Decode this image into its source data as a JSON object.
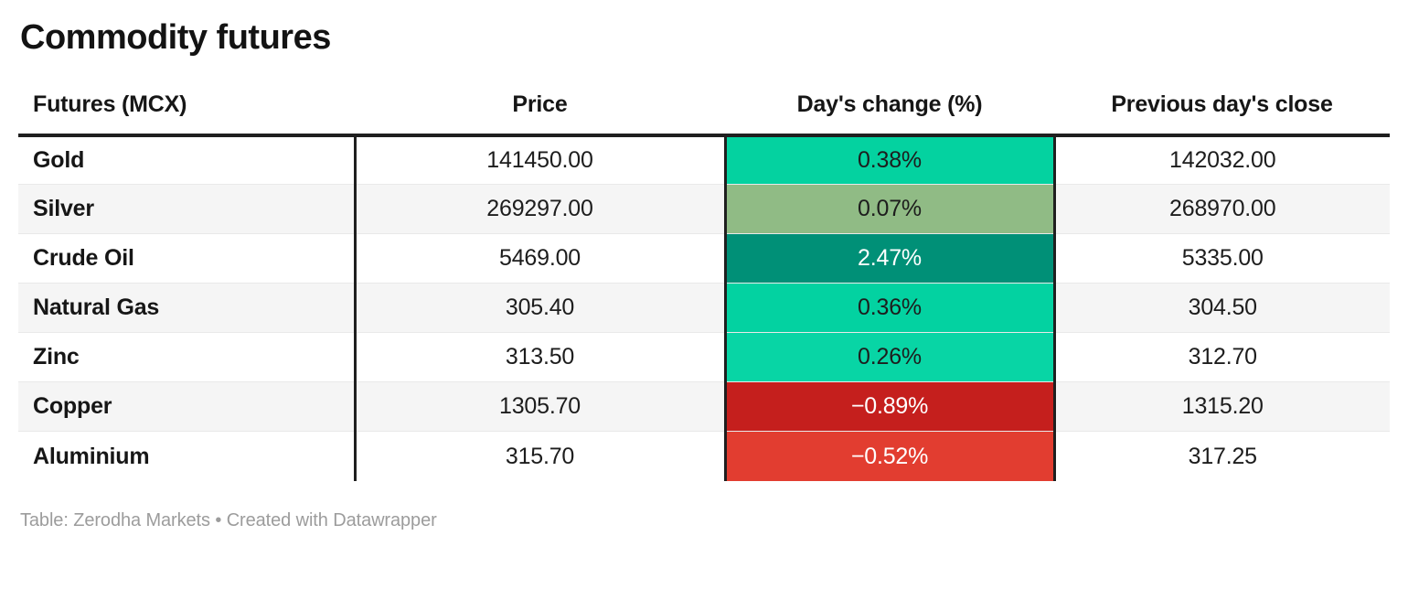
{
  "title": "Commodity futures",
  "table": {
    "columns": [
      "Futures (MCX)",
      "Price",
      "Day's change (%)",
      "Previous day's close"
    ],
    "rows": [
      {
        "name": "Gold",
        "price": "141450.00",
        "change": "0.38%",
        "prev": "142032.00",
        "change_bg": "#04d2a0",
        "change_fg": "#1d1d1d"
      },
      {
        "name": "Silver",
        "price": "269297.00",
        "change": "0.07%",
        "prev": "268970.00",
        "change_bg": "#90bb85",
        "change_fg": "#1d1d1d"
      },
      {
        "name": "Crude Oil",
        "price": "5469.00",
        "change": "2.47%",
        "prev": "5335.00",
        "change_bg": "#009077",
        "change_fg": "#ffffff"
      },
      {
        "name": "Natural Gas",
        "price": "305.40",
        "change": "0.36%",
        "prev": "304.50",
        "change_bg": "#03d2a1",
        "change_fg": "#1d1d1d"
      },
      {
        "name": "Zinc",
        "price": "313.50",
        "change": "0.26%",
        "prev": "312.70",
        "change_bg": "#08d5a5",
        "change_fg": "#1d1d1d"
      },
      {
        "name": "Copper",
        "price": "1305.70",
        "change": "−0.89%",
        "prev": "1315.20",
        "change_bg": "#c51f1d",
        "change_fg": "#ffffff"
      },
      {
        "name": "Aluminium",
        "price": "315.70",
        "change": "−0.52%",
        "prev": "317.25",
        "change_bg": "#e23d30",
        "change_fg": "#ffffff"
      }
    ]
  },
  "footer": "Table: Zerodha Markets • Created with Datawrapper",
  "colors": {
    "positive_strong": "#009077",
    "positive": "#04d2a0",
    "positive_weak": "#90bb85",
    "negative_strong": "#c51f1d",
    "negative": "#e23d30",
    "header_rule": "#1f1f1f",
    "row_stripe": "#f5f5f5",
    "footer_text": "#9c9c9c"
  },
  "chart_data": {
    "type": "table",
    "title": "Commodity futures",
    "columns": [
      "Futures (MCX)",
      "Price",
      "Day's change (%)",
      "Previous day's close"
    ],
    "rows": [
      [
        "Gold",
        141450.0,
        0.38,
        142032.0
      ],
      [
        "Silver",
        269297.0,
        0.07,
        268970.0
      ],
      [
        "Crude Oil",
        5469.0,
        2.47,
        5335.0
      ],
      [
        "Natural Gas",
        305.4,
        0.36,
        304.5
      ],
      [
        "Zinc",
        313.5,
        0.26,
        312.7
      ],
      [
        "Copper",
        1305.7,
        -0.89,
        1315.2
      ],
      [
        "Aluminium",
        315.7,
        -0.52,
        317.25
      ]
    ],
    "layout_hints": "Day's change column heat-colored: dark teal for large gains, bright green for small gains, sage green near zero, bright/dark red for losses; black rules flank name and change columns"
  }
}
